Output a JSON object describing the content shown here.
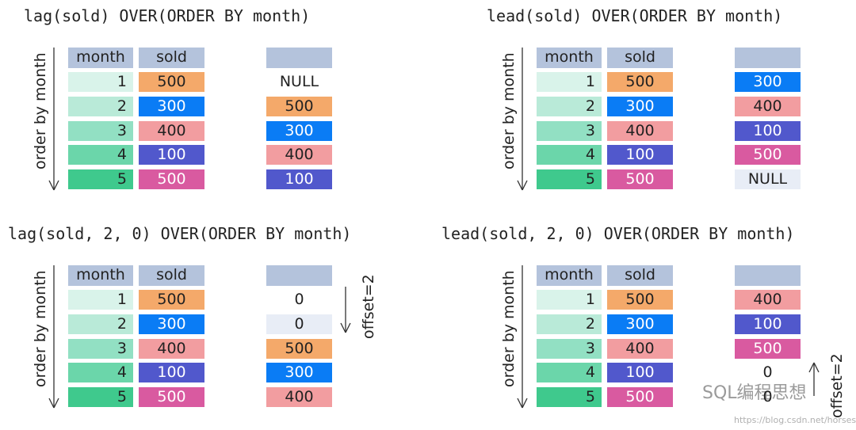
{
  "panels": [
    {
      "title": "lag(sold) OVER(ORDER BY month)",
      "axis_label": "order by month",
      "headers": [
        "month",
        "sold"
      ],
      "rows": [
        {
          "month": "1",
          "sold": {
            "text": "500",
            "fill": "#f4a96a",
            "ink": "#222"
          }
        },
        {
          "month": "2",
          "sold": {
            "text": "300",
            "fill": "#0a7cf5",
            "ink": "#fff"
          }
        },
        {
          "month": "3",
          "sold": {
            "text": "400",
            "fill": "#f29da0",
            "ink": "#222"
          }
        },
        {
          "month": "4",
          "sold": {
            "text": "100",
            "fill": "#5158cc",
            "ink": "#fff"
          }
        },
        {
          "month": "5",
          "sold": {
            "text": "500",
            "fill": "#d95aa0",
            "ink": "#fff"
          }
        }
      ],
      "results": [
        {
          "text": "NULL",
          "fill": null,
          "ink": "#222"
        },
        {
          "text": "500",
          "fill": "#f4a96a",
          "ink": "#222"
        },
        {
          "text": "300",
          "fill": "#0a7cf5",
          "ink": "#fff"
        },
        {
          "text": "400",
          "fill": "#f29da0",
          "ink": "#222"
        },
        {
          "text": "100",
          "fill": "#5158cc",
          "ink": "#fff"
        }
      ]
    },
    {
      "title": "lead(sold) OVER(ORDER BY month)",
      "axis_label": "order by month",
      "headers": [
        "month",
        "sold"
      ],
      "rows": [
        {
          "month": "1",
          "sold": {
            "text": "500",
            "fill": "#f4a96a",
            "ink": "#222"
          }
        },
        {
          "month": "2",
          "sold": {
            "text": "300",
            "fill": "#0a7cf5",
            "ink": "#fff"
          }
        },
        {
          "month": "3",
          "sold": {
            "text": "400",
            "fill": "#f29da0",
            "ink": "#222"
          }
        },
        {
          "month": "4",
          "sold": {
            "text": "100",
            "fill": "#5158cc",
            "ink": "#fff"
          }
        },
        {
          "month": "5",
          "sold": {
            "text": "500",
            "fill": "#d95aa0",
            "ink": "#fff"
          }
        }
      ],
      "results": [
        {
          "text": "300",
          "fill": "#0a7cf5",
          "ink": "#fff"
        },
        {
          "text": "400",
          "fill": "#f29da0",
          "ink": "#222"
        },
        {
          "text": "100",
          "fill": "#5158cc",
          "ink": "#fff"
        },
        {
          "text": "500",
          "fill": "#d95aa0",
          "ink": "#fff"
        },
        {
          "text": "NULL",
          "fill": "#e8edf6",
          "ink": "#222"
        }
      ]
    },
    {
      "title": "lag(sold, 2, 0) OVER(ORDER BY month)",
      "axis_label": "order by month",
      "headers": [
        "month",
        "sold"
      ],
      "rows": [
        {
          "month": "1",
          "sold": {
            "text": "500",
            "fill": "#f4a96a",
            "ink": "#222"
          }
        },
        {
          "month": "2",
          "sold": {
            "text": "300",
            "fill": "#0a7cf5",
            "ink": "#fff"
          }
        },
        {
          "month": "3",
          "sold": {
            "text": "400",
            "fill": "#f29da0",
            "ink": "#222"
          }
        },
        {
          "month": "4",
          "sold": {
            "text": "100",
            "fill": "#5158cc",
            "ink": "#fff"
          }
        },
        {
          "month": "5",
          "sold": {
            "text": "500",
            "fill": "#d95aa0",
            "ink": "#fff"
          }
        }
      ],
      "results": [
        {
          "text": "0",
          "fill": null,
          "ink": "#222"
        },
        {
          "text": "0",
          "fill": "#e8edf6",
          "ink": "#222"
        },
        {
          "text": "500",
          "fill": "#f4a96a",
          "ink": "#222"
        },
        {
          "text": "300",
          "fill": "#0a7cf5",
          "ink": "#fff"
        },
        {
          "text": "400",
          "fill": "#f29da0",
          "ink": "#222"
        }
      ],
      "offset_label": "offset=2"
    },
    {
      "title": "lead(sold, 2, 0) OVER(ORDER BY month)",
      "axis_label": "order by month",
      "headers": [
        "month",
        "sold"
      ],
      "rows": [
        {
          "month": "1",
          "sold": {
            "text": "500",
            "fill": "#f4a96a",
            "ink": "#222"
          }
        },
        {
          "month": "2",
          "sold": {
            "text": "300",
            "fill": "#0a7cf5",
            "ink": "#fff"
          }
        },
        {
          "month": "3",
          "sold": {
            "text": "400",
            "fill": "#f29da0",
            "ink": "#222"
          }
        },
        {
          "month": "4",
          "sold": {
            "text": "100",
            "fill": "#5158cc",
            "ink": "#fff"
          }
        },
        {
          "month": "5",
          "sold": {
            "text": "500",
            "fill": "#d95aa0",
            "ink": "#fff"
          }
        }
      ],
      "results": [
        {
          "text": "400",
          "fill": "#f29da0",
          "ink": "#222"
        },
        {
          "text": "100",
          "fill": "#5158cc",
          "ink": "#fff"
        },
        {
          "text": "500",
          "fill": "#d95aa0",
          "ink": "#fff"
        },
        {
          "text": "0",
          "fill": null,
          "ink": "#222"
        },
        {
          "text": "0",
          "fill": null,
          "ink": "#222"
        }
      ],
      "offset_label": "offset=2"
    }
  ],
  "watermark": {
    "name": "SQL编程思想",
    "url": "https://blog.csdn.net/horses"
  }
}
